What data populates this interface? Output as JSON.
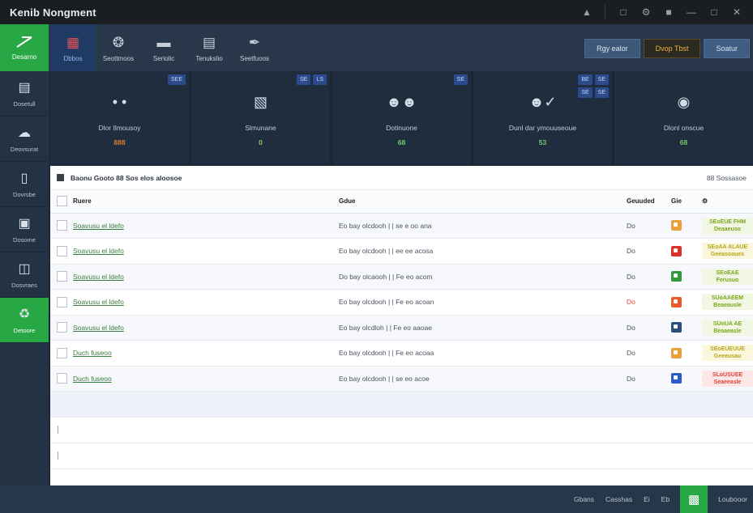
{
  "window": {
    "title": "Kenib Nongment",
    "controls": [
      "user-icon",
      "monitor-icon",
      "settings-icon",
      "notify-icon",
      "minimize-icon",
      "maximize-icon",
      "close-icon"
    ]
  },
  "brand": {
    "label": "Desarno"
  },
  "toolbar": {
    "items": [
      {
        "label": "Dbbos",
        "icon": "grid-icon",
        "active": true
      },
      {
        "label": "Seottmoos",
        "icon": "film-reel-icon"
      },
      {
        "label": "Seriolic",
        "icon": "keyboard-icon"
      },
      {
        "label": "Tenukslio",
        "icon": "calendar-icon"
      },
      {
        "label": "Seetfuoos",
        "icon": "tag-icon"
      }
    ],
    "actions": [
      {
        "label": "Rgy ealor",
        "style": "normal"
      },
      {
        "label": "Dvop Tbst",
        "style": "warn"
      },
      {
        "label": "Soatur",
        "style": "primary"
      }
    ]
  },
  "sidebar": {
    "items": [
      {
        "label": "Dosetull",
        "icon": "document-icon"
      },
      {
        "label": "Deovsurat",
        "icon": "cloud-icon"
      },
      {
        "label": "Dovrsbe",
        "icon": "file-icon"
      },
      {
        "label": "Dosome",
        "icon": "image-icon"
      },
      {
        "label": "Dosvraes",
        "icon": "screen-icon"
      },
      {
        "label": "Detoore",
        "icon": "recycle-icon",
        "active": true
      }
    ]
  },
  "stats": [
    {
      "name": "Dlor Ilmousoy",
      "value": "888",
      "value_color": "orange",
      "icon": "dots-icon",
      "badges": [
        "SEE"
      ]
    },
    {
      "name": "Slmunane",
      "value": "0",
      "value_color": "green",
      "icon": "projector-icon",
      "badges": [
        "SE",
        "LS"
      ]
    },
    {
      "name": "Dotinuone",
      "value": "68",
      "value_color": "green",
      "icon": "users-icon",
      "badges": [
        "SE"
      ]
    },
    {
      "name": "Dunl dar ymouuseoue",
      "value": "53",
      "value_color": "green",
      "icon": "user-edit-icon",
      "badges": [
        "BE",
        "SE",
        "SE",
        "SE"
      ]
    },
    {
      "name": "Dlonl onscue",
      "value": "68",
      "value_color": "green",
      "icon": "trophy-icon",
      "badges": []
    }
  ],
  "panel": {
    "title": "Baonu Gooto 88 Sos elos aloosoe",
    "right": "88 Sossasoe"
  },
  "table": {
    "headers": {
      "name": "Ruere",
      "value": "Gdue",
      "num": "Geuuded",
      "ico": "Gie"
    },
    "rows": [
      {
        "name": "Soavusu el ldefo",
        "value": "Eo bay olcdooh | | se e oo ana",
        "num": "Do",
        "num_red": false,
        "icon_color": "#e8a03a",
        "status": "SEoEUE FHM\nDeaaeuso",
        "status_kind": "ok"
      },
      {
        "name": "Soavusu el ldefo",
        "value": "Eo bay olcdooh | | ee ee acosa",
        "num": "Do",
        "num_red": false,
        "icon_color": "#d9332b",
        "status": "SEoAA ALAUE\nGeeasoaues",
        "status_kind": "warn"
      },
      {
        "name": "Soavusu el ldefo",
        "value": "Do bay olcaooh | | Fe eo acom",
        "num": "Do",
        "num_red": false,
        "icon_color": "#2f9a3c",
        "status": "SEoEAE\nFerusuo",
        "status_kind": "ok"
      },
      {
        "name": "Soavusu el ldefo",
        "value": "Eo bay olcdooh | | Fe eo acoan",
        "num": "Do",
        "num_red": true,
        "icon_color": "#e85a2a",
        "status": "SUoAAEEM\nBeaeausle",
        "status_kind": "ok"
      },
      {
        "name": "Soavusu el ldefo",
        "value": "Eo bay olcdloh | | Fe eo aaoae",
        "num": "Do",
        "num_red": false,
        "icon_color": "#2b4e7a",
        "status": "SUoUA AE\nBeaaeasle",
        "status_kind": "ok"
      },
      {
        "name": "Duch fuseoo",
        "value": "Eo bay olcdooh | | Fe eo acoaa",
        "num": "Do",
        "num_red": false,
        "icon_color": "#e8a03a",
        "status": "SEoEUEUUE\nGeeeusau",
        "status_kind": "warn"
      },
      {
        "name": "Duch fuseoo",
        "value": "Eo bay olcdooh | | se eo acoe",
        "num": "Do",
        "num_red": false,
        "icon_color": "#2b5cc8",
        "status": "SLoUSUEE\nSeaeeasle",
        "status_kind": "err"
      }
    ]
  },
  "statusbar": {
    "items": [
      "Gbans",
      "Casshas",
      "Ei",
      "Eb"
    ],
    "right_label": "Loubooor"
  }
}
